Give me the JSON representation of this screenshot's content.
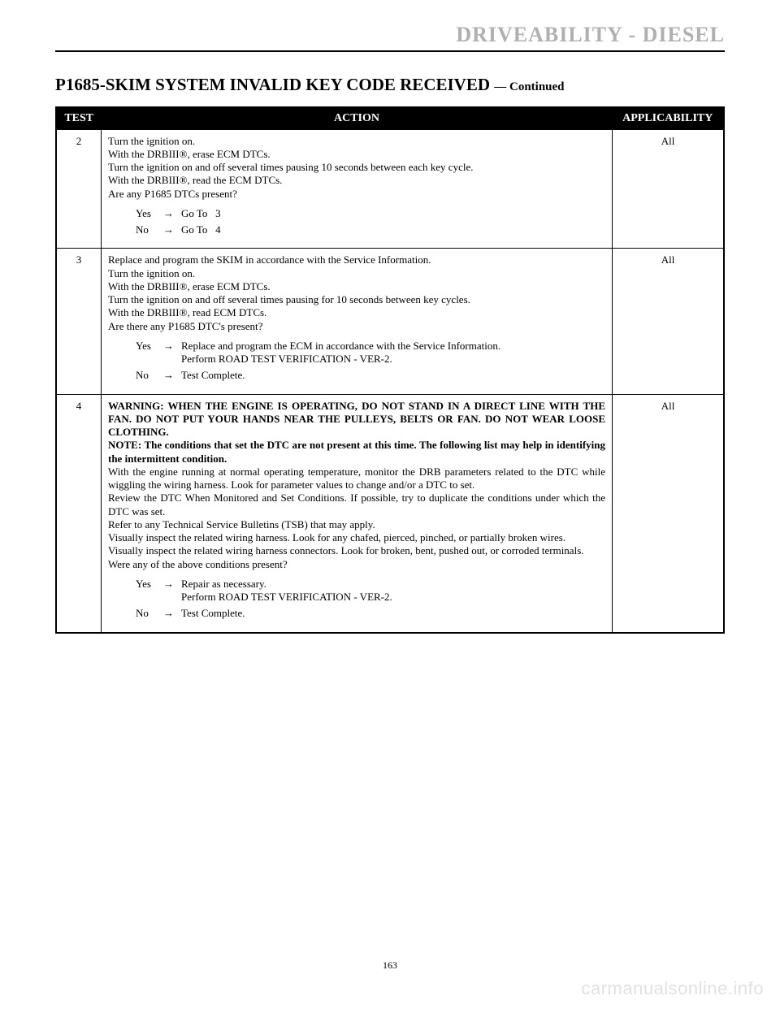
{
  "section_header": "DRIVEABILITY - DIESEL",
  "title_main": "P1685-SKIM SYSTEM INVALID KEY CODE RECEIVED",
  "title_cont": "— Continued",
  "table": {
    "headers": {
      "test": "TEST",
      "action": "ACTION",
      "applic": "APPLICABILITY"
    },
    "rows": [
      {
        "test_no": "2",
        "applic": "All",
        "lines": [
          "Turn the ignition on.",
          "With the DRBIII®, erase ECM DTCs.",
          "Turn the ignition on and off several times pausing 10 seconds between each key cycle.",
          "With the DRBIII®, read the ECM DTCs.",
          "Are any P1685 DTCs present?"
        ],
        "answers": [
          {
            "label": "Yes",
            "text": "Go To   3"
          },
          {
            "label": "No",
            "text": "Go To   4"
          }
        ]
      },
      {
        "test_no": "3",
        "applic": "All",
        "lines": [
          "Replace and program the SKIM in accordance with the Service Information.",
          "Turn the ignition on.",
          "With the DRBIII®, erase ECM DTCs.",
          "Turn the ignition on and off several times pausing for 10 seconds between key cycles.",
          "With the DRBIII®, read ECM DTCs.",
          "Are there any P1685 DTC's present?"
        ],
        "answers": [
          {
            "label": "Yes",
            "text": "Replace and program the ECM in accordance with the Service Information.\nPerform ROAD TEST VERIFICATION - VER-2."
          },
          {
            "label": "No",
            "text": "Test Complete."
          }
        ]
      },
      {
        "test_no": "4",
        "applic": "All",
        "bold_lines": [
          "WARNING: WHEN THE ENGINE IS OPERATING, DO NOT STAND IN A DIRECT LINE WITH THE FAN. DO NOT PUT YOUR HANDS NEAR THE PULLEYS, BELTS OR FAN. DO NOT WEAR LOOSE CLOTHING.",
          "NOTE: The conditions that set the DTC are not present at this time. The following list may help in identifying the intermittent condition."
        ],
        "lines": [
          "With the engine running at normal operating temperature, monitor the DRB parameters related to the DTC while wiggling the wiring harness. Look for parameter values to change and/or a DTC to set.",
          "Review the DTC When Monitored and Set Conditions. If possible, try to duplicate the conditions under which the DTC was set.",
          "Refer to any Technical Service Bulletins (TSB) that may apply.",
          "Visually inspect the related wiring harness. Look for any chafed, pierced, pinched, or partially broken wires.",
          "Visually inspect the related wiring harness connectors. Look for broken, bent, pushed out, or corroded terminals.",
          "Were any of the above conditions present?"
        ],
        "answers": [
          {
            "label": "Yes",
            "text": "Repair as necessary.\nPerform ROAD TEST VERIFICATION - VER-2."
          },
          {
            "label": "No",
            "text": "Test Complete."
          }
        ]
      }
    ]
  },
  "page_number": "163",
  "watermark": "carmanualsonline.info",
  "arrow_glyph": "→"
}
